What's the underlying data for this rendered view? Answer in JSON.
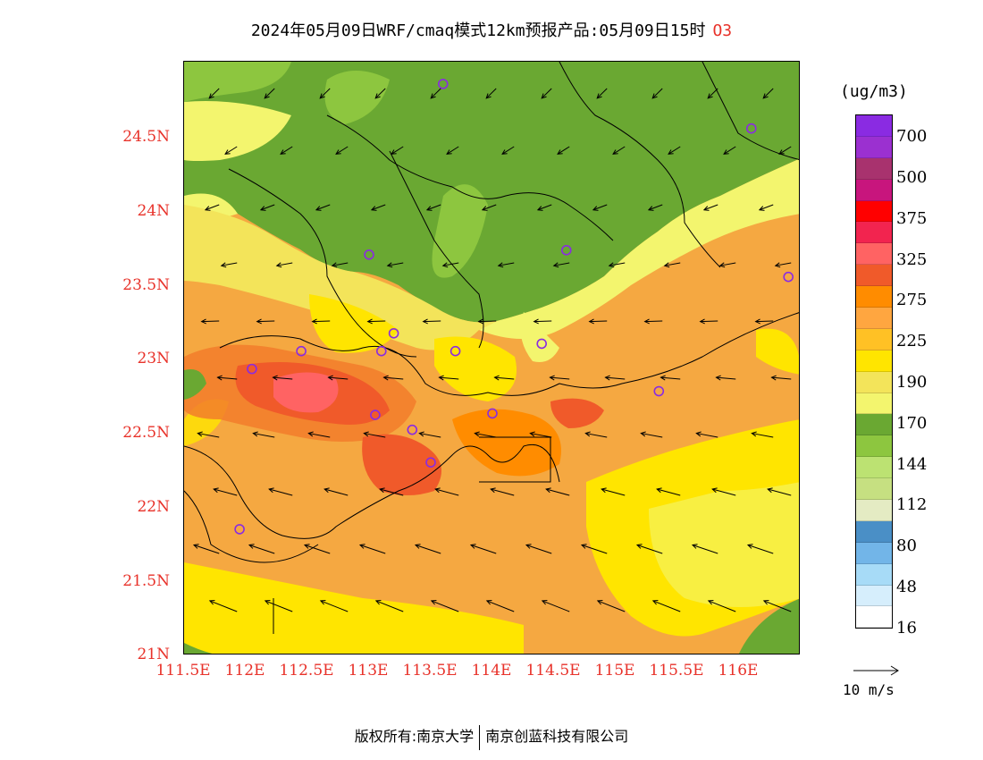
{
  "title": {
    "text": "2024年05月09日WRF/cmaq模式12km预报产品:05月09日15时",
    "species": "O3"
  },
  "map": {
    "lat_ticks": [
      "24.5N",
      "24N",
      "23.5N",
      "23N",
      "22.5N",
      "22N",
      "21.5N",
      "21N"
    ],
    "lon_ticks": [
      "111.5E",
      "112E",
      "112.5E",
      "113E",
      "113.5E",
      "114E",
      "114.5E",
      "115E",
      "115.5E",
      "116E"
    ],
    "lon_range": [
      111.5,
      116.5
    ],
    "lat_range": [
      21.0,
      25.0
    ],
    "stations": [
      {
        "lon": 113.6,
        "lat": 24.85
      },
      {
        "lon": 116.1,
        "lat": 24.55
      },
      {
        "lon": 113.0,
        "lat": 23.7
      },
      {
        "lon": 114.6,
        "lat": 23.73
      },
      {
        "lon": 116.4,
        "lat": 23.55
      },
      {
        "lon": 113.2,
        "lat": 23.17
      },
      {
        "lon": 112.45,
        "lat": 23.05
      },
      {
        "lon": 113.1,
        "lat": 23.05
      },
      {
        "lon": 113.7,
        "lat": 23.05
      },
      {
        "lon": 114.4,
        "lat": 23.1
      },
      {
        "lon": 112.05,
        "lat": 22.93
      },
      {
        "lon": 113.05,
        "lat": 22.62
      },
      {
        "lon": 113.35,
        "lat": 22.52
      },
      {
        "lon": 114.0,
        "lat": 22.63
      },
      {
        "lon": 115.35,
        "lat": 22.78
      },
      {
        "lon": 113.5,
        "lat": 22.3
      },
      {
        "lon": 111.95,
        "lat": 21.85
      }
    ],
    "wind_arrows_shown": true
  },
  "legend": {
    "unit": "(ug/m3)",
    "labels": [
      "700",
      "500",
      "375",
      "325",
      "275",
      "225",
      "190",
      "170",
      "144",
      "112",
      "80",
      "48",
      "16"
    ],
    "colors": [
      "#8a2be2",
      "#9b30d0",
      "#a8326e",
      "#c8157d",
      "#ff0000",
      "#f2244f",
      "#ff6363",
      "#f05a2a",
      "#ff8c00",
      "#ffa640",
      "#ffc125",
      "#ffe500",
      "#f3e45a",
      "#f3f56e",
      "#6aa832",
      "#8dc63f",
      "#bce272",
      "#c6e081",
      "#e4ebc3",
      "#4a8fc6",
      "#72b5e8",
      "#a7dbf7",
      "#d6eefc",
      "#ffffff"
    ]
  },
  "wind_scale": {
    "label": "10 m/s"
  },
  "footer": {
    "left": "版权所有:南京大学",
    "right": "南京创蓝科技有限公司"
  }
}
